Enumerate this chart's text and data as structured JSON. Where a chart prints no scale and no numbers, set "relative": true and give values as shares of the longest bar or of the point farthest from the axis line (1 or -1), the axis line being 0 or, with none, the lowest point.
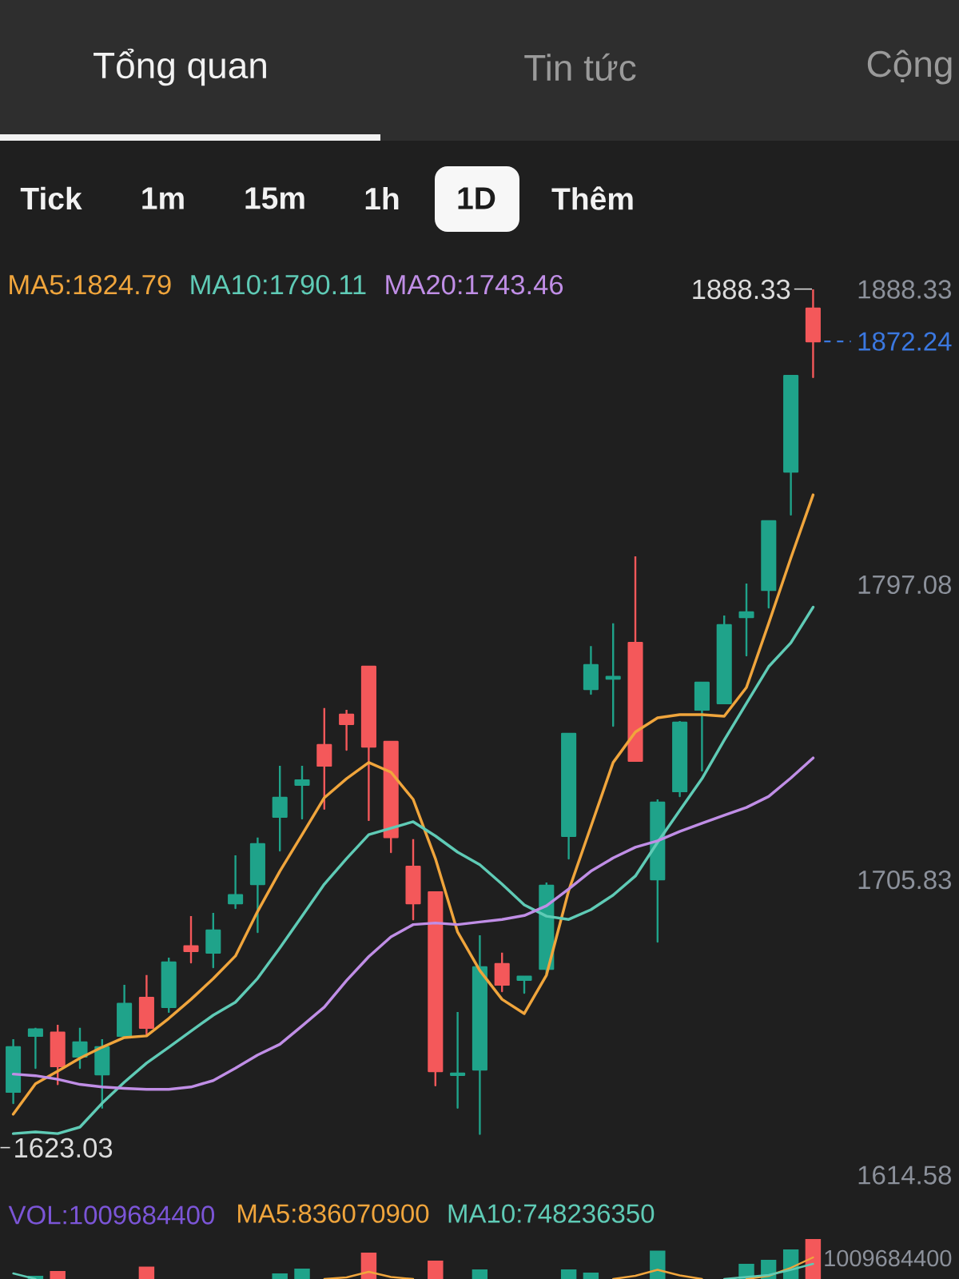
{
  "chart_data": [
    {
      "type": "other",
      "annotations": [
        "Tổng quan",
        "Tin tức",
        "Cộng",
        "Tick",
        "1m",
        "15m",
        "1h",
        "1D",
        "Thêm"
      ]
    },
    {
      "type": "candlestick",
      "categories": [
        null,
        null,
        null,
        null,
        null,
        null,
        null,
        null,
        null,
        null,
        null,
        null,
        null,
        null,
        null,
        null,
        null,
        null,
        null,
        null,
        null,
        null,
        null,
        null,
        null,
        null,
        null,
        null,
        null,
        null,
        null,
        null,
        null,
        null,
        null,
        null,
        null
      ],
      "ohlc": [
        [
          1640.3,
          1656.6,
          1636.8,
          1654.1
        ],
        [
          1657.6,
          1660.1,
          1647.7,
          1659.6
        ],
        [
          1658.6,
          1661.0,
          1642.7,
          1648.2
        ],
        [
          1651.2,
          1660.1,
          1647.7,
          1655.6
        ],
        [
          1645.7,
          1656.6,
          1635.4,
          1654.1
        ],
        [
          1657.6,
          1673.4,
          1657.1,
          1667.5
        ],
        [
          1669.4,
          1676.4,
          1657.6,
          1660.1
        ],
        [
          1666.5,
          1681.8,
          1665.0,
          1680.3
        ],
        [
          1685.3,
          1694.6,
          1680.3,
          1683.8
        ],
        [
          1683.3,
          1695.6,
          1678.8,
          1690.2
        ],
        [
          1698.6,
          1713.4,
          1697.1,
          1701.1
        ],
        [
          1704.5,
          1718.9,
          1689.7,
          1716.9
        ],
        [
          1725.3,
          1741.1,
          1714.9,
          1731.2
        ],
        [
          1735.2,
          1741.1,
          1724.8,
          1736.6
        ],
        [
          1747.5,
          1758.9,
          1727.8,
          1741.1
        ],
        [
          1756.9,
          1758.4,
          1746.0,
          1754.0
        ],
        [
          1771.7,
          1771.7,
          1724.3,
          1747.0
        ],
        [
          1748.5,
          1748.5,
          1714.4,
          1719.0
        ],
        [
          1709.9,
          1718.4,
          1693.6,
          1698.6
        ],
        [
          1702.0,
          1702.0,
          1642.3,
          1646.7
        ],
        [
          1645.5,
          1665.0,
          1635.4,
          1646.0
        ],
        [
          1647.2,
          1688.7,
          1627.3,
          1678.8
        ],
        [
          1679.8,
          1683.3,
          1671.4,
          1673.4
        ],
        [
          1674.9,
          1675.9,
          1670.9,
          1675.9
        ],
        [
          1678.3,
          1705.0,
          1676.4,
          1704.0
        ],
        [
          1719.4,
          1751.0,
          1712.4,
          1751.0
        ],
        [
          1764.8,
          1778.1,
          1763.3,
          1772.2
        ],
        [
          1768.0,
          1785.1,
          1753.4,
          1768.6
        ],
        [
          1779.1,
          1805.8,
          1742.6,
          1742.6
        ],
        [
          1706.0,
          1730.7,
          1686.7,
          1729.7
        ],
        [
          1733.2,
          1754.9,
          1731.7,
          1754.4
        ],
        [
          1758.4,
          1766.8,
          1739.6,
          1766.8
        ],
        [
          1760.4,
          1787.5,
          1760.4,
          1784.6
        ],
        [
          1787.0,
          1797.4,
          1775.2,
          1788.5
        ],
        [
          1795.4,
          1816.7,
          1790.0,
          1816.7
        ],
        [
          1832.0,
          1861.6,
          1818.7,
          1861.6
        ],
        [
          1882.4,
          1888.33,
          1861.2,
          1872.24
        ]
      ],
      "colors": [
        "#1fa38a",
        "#1fa38a",
        "#f4585a",
        "#1fa38a",
        "#1fa38a",
        "#1fa38a",
        "#f4585a",
        "#1fa38a",
        "#f4585a",
        "#1fa38a",
        "#1fa38a",
        "#1fa38a",
        "#1fa38a",
        "#1fa38a",
        "#f4585a",
        "#f4585a",
        "#f4585a",
        "#f4585a",
        "#f4585a",
        "#f4585a",
        "#1fa38a",
        "#1fa38a",
        "#f4585a",
        "#1fa38a",
        "#1fa38a",
        "#1fa38a",
        "#1fa38a",
        "#1fa38a",
        "#f4585a",
        "#1fa38a",
        "#1fa38a",
        "#1fa38a",
        "#1fa38a",
        "#1fa38a",
        "#1fa38a",
        "#1fa38a",
        "#f4585a"
      ],
      "series": [
        {
          "type": "line",
          "name": "MA5:1824.79",
          "color": "#f0a53c",
          "values": [
            1633.4,
            1642.8,
            1646.7,
            1650.7,
            1654.1,
            1657.1,
            1657.6,
            1663.0,
            1668.9,
            1675.3,
            1682.3,
            1696.1,
            1708.5,
            1719.8,
            1731.2,
            1737.1,
            1742.1,
            1739.1,
            1730.7,
            1712.4,
            1689.7,
            1677.8,
            1668.9,
            1664.5,
            1676.4,
            1702.5,
            1722.3,
            1742.1,
            1751.5,
            1755.9,
            1756.9,
            1756.9,
            1756.4,
            1765.3,
            1785.1,
            1805.3,
            1824.8
          ]
        },
        {
          "type": "line",
          "name": "MA10:1790.11",
          "color": "#5fcbb6",
          "values": [
            1627.4,
            1627.9,
            1627.4,
            1629.4,
            1636.8,
            1643.3,
            1649.2,
            1654.1,
            1659.1,
            1664.0,
            1668.0,
            1675.4,
            1684.8,
            1694.6,
            1704.5,
            1712.4,
            1719.8,
            1721.8,
            1723.8,
            1719.4,
            1714.4,
            1710.5,
            1704.5,
            1698.1,
            1694.6,
            1693.6,
            1696.6,
            1701.1,
            1707.0,
            1717.4,
            1727.3,
            1737.1,
            1749.0,
            1760.4,
            1771.7,
            1779.1,
            1790.1
          ]
        },
        {
          "type": "line",
          "name": "MA20:1743.46",
          "color": "#c08ee6",
          "values": [
            1645.8,
            1645.3,
            1644.2,
            1642.6,
            1641.8,
            1641.4,
            1641.1,
            1641.1,
            1641.8,
            1643.8,
            1647.6,
            1651.7,
            1655.0,
            1660.7,
            1666.5,
            1674.7,
            1682.1,
            1688.2,
            1692.0,
            1692.5,
            1692.0,
            1692.8,
            1693.6,
            1694.8,
            1697.8,
            1703.0,
            1708.5,
            1712.6,
            1715.9,
            1717.9,
            1720.8,
            1723.3,
            1725.8,
            1728.2,
            1731.6,
            1737.3,
            1743.5
          ]
        }
      ],
      "ylim": [
        1614.58,
        1888.33
      ],
      "yticks": [
        1888.33,
        1797.08,
        1705.83,
        1614.58
      ],
      "tick_labels": "y",
      "legend": "top",
      "ref_lines": [
        {
          "axis": "y",
          "value": 1872.24,
          "label": "1872.24",
          "color": "#3b78e0",
          "line_style": "dashed"
        }
      ],
      "annotations": [
        "1888.33",
        "1623.03"
      ]
    },
    {
      "type": "bar",
      "relative": true,
      "categories": [
        null,
        null,
        null,
        null,
        null,
        null,
        null,
        null,
        null,
        null,
        null,
        null,
        null,
        null,
        null,
        null,
        null,
        null,
        null,
        null,
        null,
        null,
        null,
        null,
        null,
        null,
        null,
        null,
        null,
        null,
        null,
        null,
        null,
        null,
        null,
        null,
        null
      ],
      "series": [
        {
          "type": "bar",
          "values": [
            null,
            0.08,
            0.2,
            null,
            null,
            null,
            0.31,
            null,
            null,
            null,
            null,
            null,
            0.14,
            0.26,
            null,
            null,
            0.66,
            null,
            null,
            0.46,
            null,
            0.24,
            null,
            null,
            null,
            0.24,
            0.16,
            null,
            null,
            0.71,
            null,
            null,
            null,
            0.38,
            0.48,
            0.74,
            1
          ],
          "colors": [
            "#1fa38a",
            "#1fa38a",
            "#f4585a",
            "#1fa38a",
            "#1fa38a",
            "#1fa38a",
            "#f4585a",
            "#1fa38a",
            "#f4585a",
            "#1fa38a",
            "#1fa38a",
            "#1fa38a",
            "#1fa38a",
            "#1fa38a",
            "#f4585a",
            "#f4585a",
            "#f4585a",
            "#f4585a",
            "#f4585a",
            "#f4585a",
            "#1fa38a",
            "#1fa38a",
            "#f4585a",
            "#1fa38a",
            "#1fa38a",
            "#1fa38a",
            "#1fa38a",
            "#1fa38a",
            "#f4585a",
            "#1fa38a",
            "#1fa38a",
            "#1fa38a",
            "#1fa38a",
            "#1fa38a",
            "#1fa38a",
            "#1fa38a",
            "#f4585a"
          ]
        },
        {
          "type": "line",
          "name": "MA5:836070900",
          "color": "#f0a53c",
          "values": [
            null,
            null,
            null,
            null,
            null,
            null,
            null,
            null,
            null,
            null,
            null,
            null,
            null,
            null,
            0,
            0.04,
            0.18,
            0.05,
            0,
            null,
            null,
            null,
            null,
            null,
            null,
            null,
            null,
            0,
            0.08,
            0.23,
            0.09,
            0,
            null,
            0,
            0.08,
            0.28,
            0.54
          ]
        },
        {
          "type": "line",
          "name": "MA10:748236350",
          "color": "#5fcbb6",
          "values": [
            0.14,
            0,
            null,
            null,
            null,
            null,
            null,
            null,
            null,
            null,
            null,
            null,
            null,
            null,
            null,
            null,
            null,
            null,
            null,
            null,
            null,
            null,
            null,
            null,
            null,
            null,
            null,
            null,
            null,
            null,
            null,
            null,
            0,
            0.05,
            0.1,
            0.23,
            0.38
          ]
        }
      ],
      "legend": "top",
      "annotations": [
        "VOL:1009684400",
        "1009684400"
      ]
    }
  ]
}
